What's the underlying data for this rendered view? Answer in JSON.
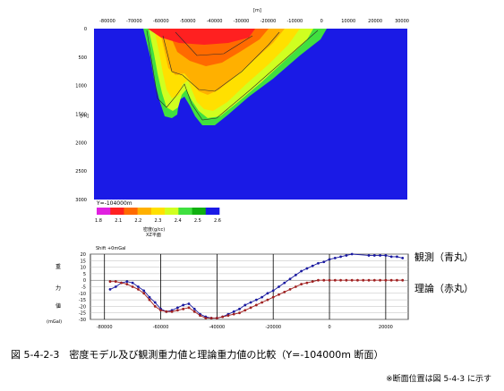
{
  "chart_data": [
    {
      "type": "heatmap",
      "subtitle": "Y=-104000m",
      "x_unit_label": "[m]",
      "y_unit_label": "[m]",
      "x_ticks": [
        -80000,
        -70000,
        -60000,
        -50000,
        -40000,
        -30000,
        -20000,
        -10000,
        0,
        10000,
        20000,
        30000
      ],
      "y_ticks": [
        0,
        500,
        1000,
        1500,
        2000,
        2500,
        3000
      ],
      "xlim": [
        -85000,
        32000
      ],
      "ylim": [
        0,
        3000
      ],
      "y_inverted": true,
      "colorbar_ticks": [
        "1.8",
        "2.1",
        "2.2",
        "2.3",
        "2.4",
        "2.5",
        "2.6"
      ],
      "colorbar_colors": [
        "#e020e0",
        "#ff2020",
        "#ff6a00",
        "#ffb000",
        "#ffe000",
        "#d0ff20",
        "#40e040",
        "#10b010",
        "#1a1ae6"
      ],
      "colorbar_label": "密度(g/cc)",
      "plane_label": "XZ平面",
      "background_color": "#1a1ae6",
      "basin_color_bands": [
        {
          "color": "#40e040",
          "depth": [
            0,
            1750
          ]
        },
        {
          "color": "#ffe000",
          "depth": [
            200,
            1500
          ]
        },
        {
          "color": "#ffb000",
          "depth": [
            100,
            1100
          ]
        },
        {
          "color": "#ff2020",
          "depth": [
            0,
            250
          ]
        }
      ]
    },
    {
      "type": "line",
      "title": "Shift +0mGal",
      "ylabel_chars": [
        "重",
        "力",
        "値",
        "(mGal)"
      ],
      "xlim": [
        -85000,
        28000
      ],
      "ylim": [
        -30,
        20
      ],
      "x_ticks": [
        -80000,
        -60000,
        -40000,
        -20000,
        0,
        20000
      ],
      "y_ticks": [
        20,
        15,
        10,
        5,
        0,
        -5,
        -10,
        -15,
        -20,
        -25,
        -30
      ],
      "grid": true,
      "series": [
        {
          "name": "観測（青丸）",
          "color": "#1a1aa0",
          "x": [
            -78000,
            -76000,
            -74000,
            -72000,
            -70000,
            -68000,
            -66000,
            -64000,
            -62000,
            -60000,
            -58000,
            -56000,
            -54000,
            -52000,
            -50000,
            -48000,
            -46000,
            -44000,
            -42000,
            -40000,
            -38000,
            -36000,
            -34000,
            -32000,
            -30000,
            -28000,
            -26000,
            -24000,
            -22000,
            -20000,
            -18000,
            -16000,
            -14000,
            -12000,
            -10000,
            -8000,
            -6000,
            -4000,
            -2000,
            0,
            2000,
            4000,
            6000,
            8000,
            14000,
            16000,
            18000,
            20000,
            22000,
            24000,
            26000
          ],
          "values": [
            -7,
            -5,
            -2,
            -1,
            -2,
            -5,
            -8,
            -13,
            -17,
            -22,
            -24,
            -23,
            -21,
            -19,
            -18,
            -22,
            -26,
            -28,
            -29,
            -29,
            -28,
            -26,
            -24,
            -22,
            -19,
            -17,
            -15,
            -13,
            -10,
            -8,
            -5,
            -2,
            1,
            4,
            7,
            9,
            11,
            13,
            14,
            16,
            17,
            18,
            19,
            20,
            19,
            19,
            19,
            19,
            18,
            18,
            17
          ]
        },
        {
          "name": "理論（赤丸）",
          "color": "#a02020",
          "x": [
            -78000,
            -76000,
            -74000,
            -72000,
            -70000,
            -68000,
            -66000,
            -64000,
            -62000,
            -60000,
            -58000,
            -56000,
            -54000,
            -52000,
            -50000,
            -48000,
            -46000,
            -44000,
            -42000,
            -40000,
            -38000,
            -36000,
            -34000,
            -32000,
            -30000,
            -28000,
            -26000,
            -24000,
            -22000,
            -20000,
            -18000,
            -16000,
            -14000,
            -12000,
            -10000,
            -8000,
            -6000,
            -4000,
            -2000,
            0,
            2000,
            4000,
            6000,
            8000,
            10000,
            12000,
            14000,
            16000,
            18000,
            20000,
            22000,
            24000,
            26000
          ],
          "values": [
            -1,
            -1,
            -2,
            -3,
            -5,
            -7,
            -10,
            -15,
            -20,
            -23,
            -24,
            -24,
            -23,
            -22,
            -21,
            -24,
            -27,
            -29,
            -29,
            -29,
            -28,
            -27,
            -26,
            -25,
            -23,
            -21,
            -19,
            -17,
            -15,
            -13,
            -11,
            -9,
            -7,
            -5,
            -3,
            -2,
            -1,
            0,
            0,
            0,
            0,
            0,
            0,
            0,
            0,
            0,
            0,
            0,
            0,
            0,
            0,
            0,
            0
          ]
        }
      ]
    }
  ],
  "caption": "図 5-4-2-3　密度モデル及び観測重力値と理論重力値の比較（Y=-104000m 断面）",
  "note": "※断面位置は図 5-4-3 に示す"
}
